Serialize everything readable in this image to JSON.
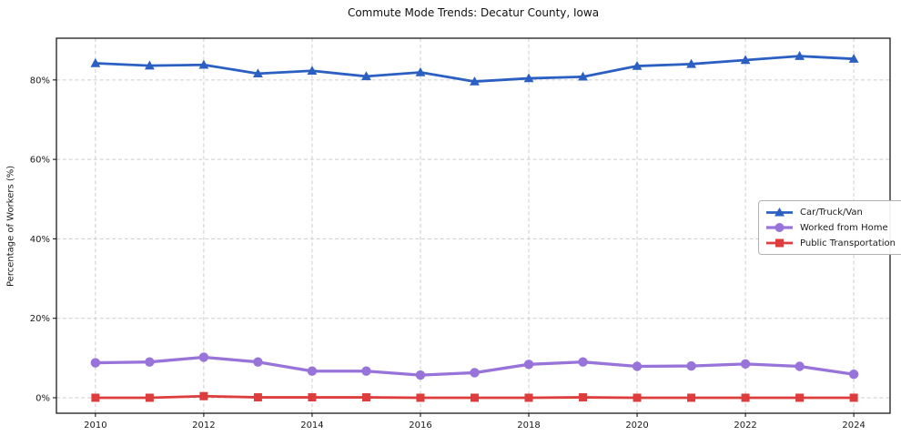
{
  "chart_data": {
    "type": "line",
    "title": "Commute Mode Trends: Decatur County, Iowa",
    "xlabel": "",
    "ylabel": "Percentage of Workers (%)",
    "x": [
      2010,
      2011,
      2012,
      2013,
      2014,
      2015,
      2016,
      2017,
      2018,
      2019,
      2020,
      2021,
      2022,
      2023,
      2024
    ],
    "series": [
      {
        "name": "Car/Truck/Van",
        "color": "#2b5fc2",
        "marker": "triangle",
        "line_width": 2.8,
        "values": [
          84.2,
          83.6,
          83.8,
          81.6,
          82.3,
          80.9,
          81.9,
          79.6,
          80.4,
          80.8,
          83.5,
          84.0,
          85.0,
          86.0,
          85.3
        ]
      },
      {
        "name": "Worked from Home",
        "color": "#9873d9",
        "marker": "circle",
        "line_width": 3.3,
        "values": [
          8.8,
          9.0,
          10.2,
          9.0,
          6.7,
          6.7,
          5.7,
          6.3,
          8.4,
          9.0,
          7.9,
          8.0,
          8.5,
          7.9,
          5.9
        ]
      },
      {
        "name": "Public Transportation",
        "color": "#dd3d3d",
        "marker": "square",
        "line_width": 2.8,
        "values": [
          0.0,
          0.0,
          0.4,
          0.1,
          0.1,
          0.1,
          0.0,
          0.0,
          0.0,
          0.1,
          0.0,
          0.0,
          0.0,
          0.0,
          0.0
        ]
      }
    ],
    "xticks": [
      2010,
      2012,
      2014,
      2016,
      2018,
      2020,
      2022,
      2024
    ],
    "yticks": [
      0,
      20,
      40,
      60,
      80
    ],
    "ytick_suffix": "%",
    "xlim": [
      2009.28,
      2024.67
    ],
    "ylim": [
      -3.9,
      90.5
    ],
    "grid": true,
    "legend_position": "center right"
  }
}
